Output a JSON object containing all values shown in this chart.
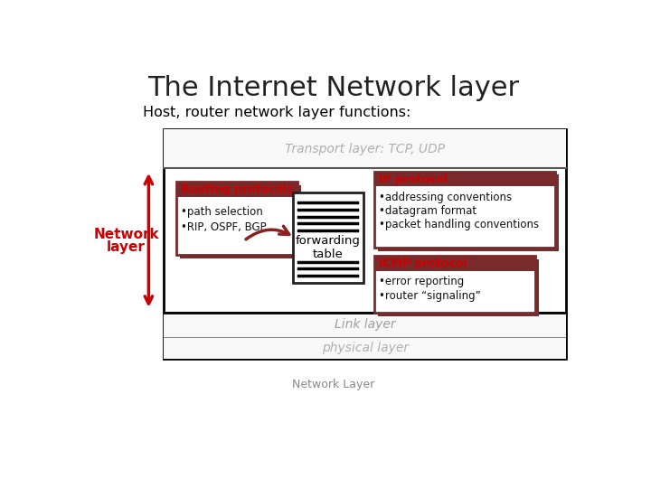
{
  "title": "The Internet Network layer",
  "subtitle": "Host, router network layer functions:",
  "transport_label": "Transport layer: TCP, UDP",
  "link_label": "Link layer",
  "physical_label": "physical layer",
  "network_layer_label1": "Network",
  "network_layer_label2": "layer",
  "footer": "Network Layer",
  "routing_title": "Routing protocols",
  "routing_bullet1": "•path selection",
  "routing_bullet2": "•RIP, OSPF, BGP",
  "ip_title": "IP protocol",
  "ip_bullet1": "•addressing conventions",
  "ip_bullet2": "•datagram format",
  "ip_bullet3": "•packet handling conventions",
  "icmp_title": "ICMP protocol",
  "icmp_bullet1": "•error reporting",
  "icmp_bullet2": "•router “signaling”",
  "forwarding_label": "forwarding\ntable",
  "bg_color": "#ffffff",
  "title_color": "#222222",
  "subtitle_color": "#000000",
  "transport_color": "#b0b0b0",
  "link_color": "#a0a0a0",
  "physical_color": "#b0b0b0",
  "network_layer_color": "#cc0000",
  "red_title_color": "#cc0000",
  "bullet_color": "#111111",
  "dark_red": "#7a2a2a",
  "arrow_color": "#8b2020",
  "outer_box_color": "#000000",
  "band_fill": "#f8f8f8",
  "network_band_fill": "#ffffff",
  "box_fill": "#ffffff"
}
